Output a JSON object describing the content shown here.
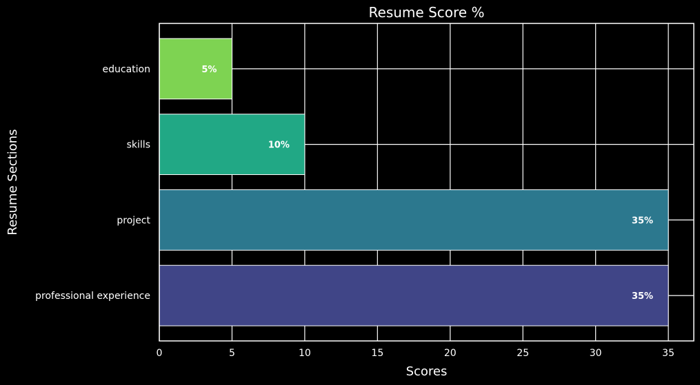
{
  "chart_data": {
    "type": "bar",
    "orientation": "horizontal",
    "title": "Resume Score %",
    "xlabel": "Scores",
    "ylabel": "Resume Sections",
    "categories": [
      "education",
      "skills",
      "project",
      "professional experience"
    ],
    "values": [
      5,
      10,
      35,
      35
    ],
    "data_labels": [
      "5%",
      "10%",
      "35%",
      "35%"
    ],
    "bar_colors": [
      "#7ed352",
      "#21a885",
      "#2c788e",
      "#404587"
    ],
    "xlim": [
      0,
      36.75
    ],
    "xticks": [
      0,
      5,
      10,
      15,
      20,
      25,
      30,
      35
    ],
    "grid": true,
    "background": "#000000",
    "text_color": "#ffffff"
  }
}
